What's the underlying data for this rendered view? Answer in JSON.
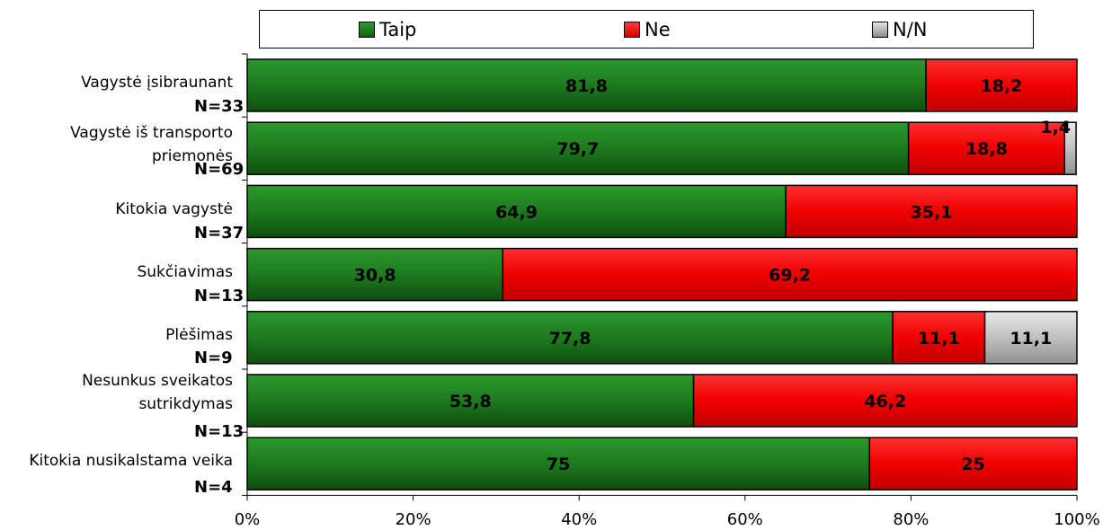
{
  "chart_data": {
    "type": "bar",
    "orientation": "horizontal",
    "stacked": true,
    "percent_scale": true,
    "categories": [
      [
        "Vagystė įsibraunant"
      ],
      [
        "Vagystė iš transporto",
        "priemonės"
      ],
      [
        "Kitokia vagystė"
      ],
      [
        "Sukčiavimas"
      ],
      [
        "Plėšimas"
      ],
      [
        "Nesunkus sveikatos",
        "sutrikdymas"
      ],
      [
        "Kitokia nusikalstama veika"
      ]
    ],
    "n_labels": [
      "N=33",
      "N=69",
      "N=37",
      "N=13",
      "N=9",
      "N=13",
      "N=4"
    ],
    "series": [
      {
        "name": "Taip",
        "color": "#1e7a1e",
        "values": [
          81.8,
          79.7,
          64.9,
          30.8,
          77.8,
          53.8,
          75
        ],
        "labels": [
          "81,8",
          "79,7",
          "64,9",
          "30,8",
          "77,8",
          "53,8",
          "75"
        ]
      },
      {
        "name": "Ne",
        "color": "#ff0000",
        "values": [
          18.2,
          18.8,
          35.1,
          69.2,
          11.1,
          46.2,
          25
        ],
        "labels": [
          "18,2",
          "18,8",
          "35,1",
          "69,2",
          "11,1",
          "46,2",
          "25"
        ]
      },
      {
        "name": "N/N",
        "color": "#c0c0c0",
        "values": [
          0,
          1.4,
          0,
          0,
          11.1,
          0,
          0
        ],
        "labels": [
          "",
          "1,4",
          "",
          "",
          "11,1",
          "",
          ""
        ]
      }
    ],
    "x_ticks": [
      "0%",
      "20%",
      "40%",
      "60%",
      "80%",
      "100%"
    ],
    "xlim": [
      0,
      100
    ],
    "grid": false,
    "legend": "top"
  }
}
